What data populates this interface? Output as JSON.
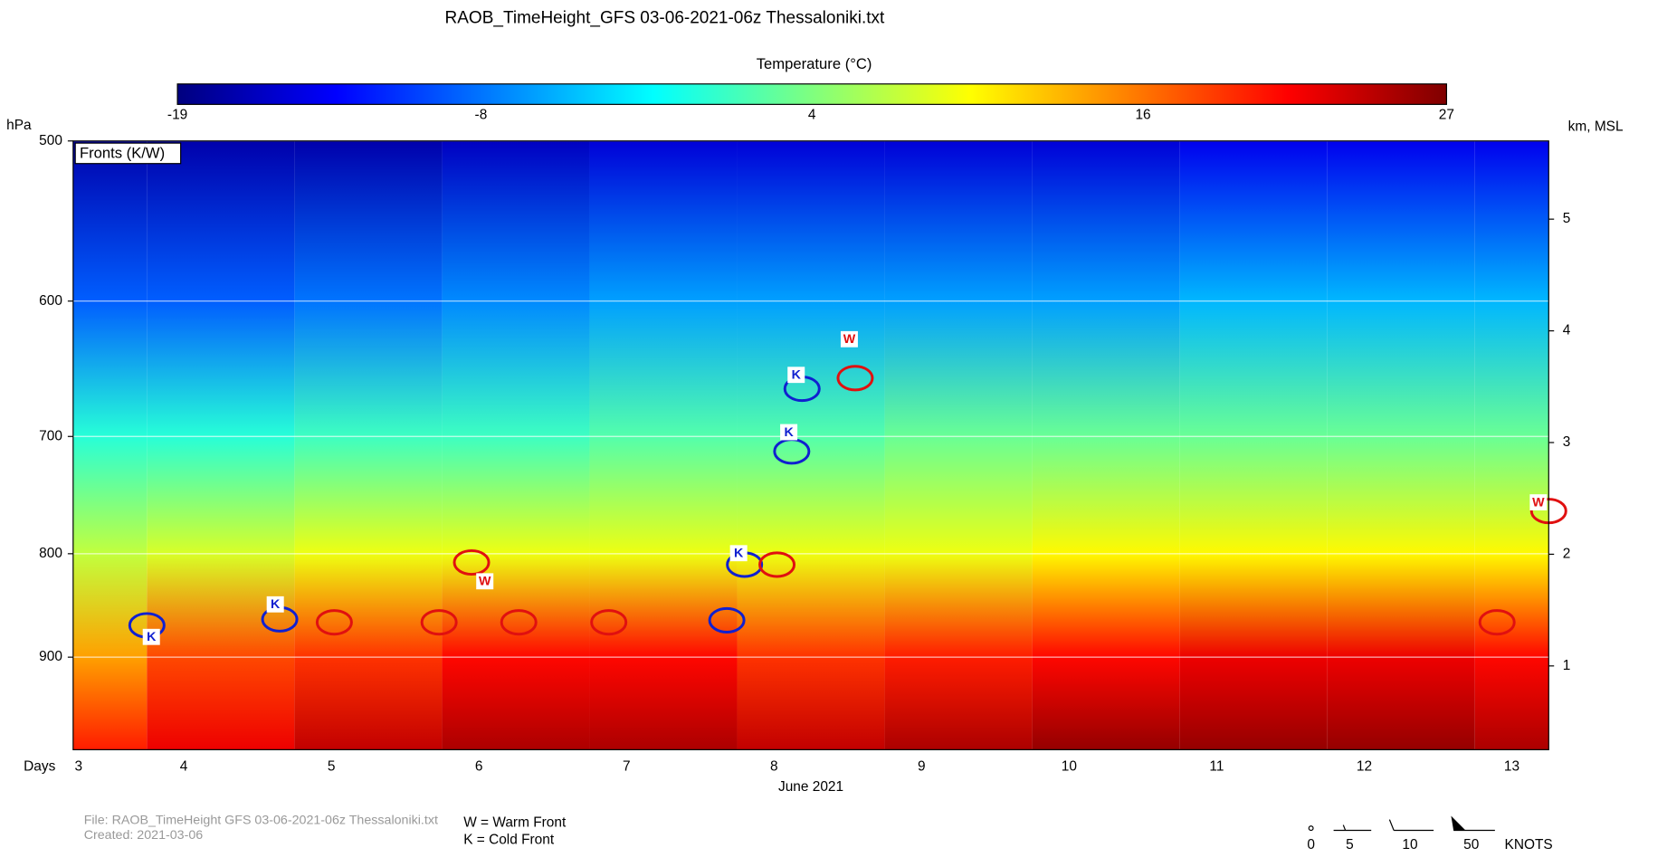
{
  "chart_data": {
    "type": "heatmap",
    "title": "RAOB_TimeHeight_GFS 03-06-2021-06z Thessaloniki.txt",
    "colorbar_label": "Temperature (°C)",
    "zlim": [
      -19,
      27
    ],
    "zticks": [
      -19,
      -8,
      4,
      16,
      27
    ],
    "colormap": [
      "#00007f",
      "#0000ff",
      "#007fff",
      "#00ffff",
      "#7fff7f",
      "#ffff00",
      "#ff7f00",
      "#ff0000",
      "#7f0000"
    ],
    "ylabel": "hPa",
    "y2label": "km, MSL",
    "xlabel": "Days",
    "x_sublabel": "June 2021",
    "log_y": true,
    "grid": true,
    "xlim": [
      3.25,
      13.25
    ],
    "xticks": [
      3,
      4,
      5,
      6,
      7,
      8,
      9,
      10,
      11,
      12,
      13
    ],
    "ylim": [
      500,
      1000
    ],
    "yticks": [
      500,
      600,
      700,
      800,
      900
    ],
    "y2lim": [
      0.25,
      5.7
    ],
    "y2ticks": [
      1,
      2,
      3,
      4,
      5
    ],
    "levels": [
      500,
      600,
      700,
      800,
      900,
      1000
    ],
    "x": [
      3.25,
      4.25,
      5.25,
      6.25,
      7.25,
      8.25,
      9.25,
      10.25,
      11.25,
      12.25,
      13.25
    ],
    "temperature": [
      [
        -17,
        -9,
        0,
        7,
        14,
        20
      ],
      [
        -17,
        -9,
        0,
        8,
        18,
        22
      ],
      [
        -17,
        -8,
        1,
        9,
        19,
        24
      ],
      [
        -16,
        -7,
        1,
        9,
        21,
        25
      ],
      [
        -15,
        -6,
        2,
        9,
        21,
        25
      ],
      [
        -15,
        -6,
        2,
        9,
        19,
        24
      ],
      [
        -15,
        -6,
        3,
        9,
        20,
        25
      ],
      [
        -15,
        -6,
        3,
        10,
        21,
        26
      ],
      [
        -14,
        -5,
        3,
        10,
        22,
        26
      ],
      [
        -14,
        -5,
        3,
        10,
        22,
        26
      ],
      [
        -14,
        -5,
        3,
        10,
        21,
        25
      ]
    ],
    "legend_title": "Fronts (K/W)",
    "contours": [
      {
        "x": 3.75,
        "p": 868,
        "color": "#1020d0"
      },
      {
        "x": 4.65,
        "p": 862,
        "color": "#1020d0"
      },
      {
        "x": 5.02,
        "p": 865,
        "color": "#e01010"
      },
      {
        "x": 5.73,
        "p": 865,
        "color": "#e01010"
      },
      {
        "x": 5.95,
        "p": 808,
        "color": "#e01010"
      },
      {
        "x": 6.27,
        "p": 865,
        "color": "#e01010"
      },
      {
        "x": 6.88,
        "p": 865,
        "color": "#e01010"
      },
      {
        "x": 7.68,
        "p": 863,
        "color": "#1020d0"
      },
      {
        "x": 7.8,
        "p": 810,
        "color": "#1020d0"
      },
      {
        "x": 8.02,
        "p": 810,
        "color": "#e01010"
      },
      {
        "x": 8.12,
        "p": 712,
        "color": "#1020d0"
      },
      {
        "x": 8.19,
        "p": 663,
        "color": "#1020d0"
      },
      {
        "x": 8.55,
        "p": 655,
        "color": "#e01010"
      },
      {
        "x": 12.9,
        "p": 865,
        "color": "#e01010"
      },
      {
        "x": 13.25,
        "p": 762,
        "color": "#e01010"
      }
    ],
    "front_labels": [
      {
        "label": "K",
        "x": 3.78,
        "p": 880,
        "color": "#1020d0"
      },
      {
        "label": "K",
        "x": 4.62,
        "p": 848,
        "color": "#1020d0"
      },
      {
        "label": "W",
        "x": 6.04,
        "p": 826,
        "color": "#e01010"
      },
      {
        "label": "K",
        "x": 7.76,
        "p": 800,
        "color": "#1020d0"
      },
      {
        "label": "K",
        "x": 8.1,
        "p": 697,
        "color": "#1020d0"
      },
      {
        "label": "K",
        "x": 8.15,
        "p": 653,
        "color": "#1020d0"
      },
      {
        "label": "W",
        "x": 8.51,
        "p": 627,
        "color": "#e01010"
      },
      {
        "label": "W",
        "x": 13.18,
        "p": 755,
        "color": "#e01010"
      }
    ],
    "footer": {
      "file": "File: RAOB_TimeHeight  GFS 03-06-2021-06z Thessaloniki.txt",
      "created": "Created:  2021-03-06",
      "warm": "W = Warm Front",
      "cold": "K = Cold Front"
    },
    "wind_key": {
      "labels": [
        "0",
        "5",
        "10",
        "50"
      ],
      "unit": "KNOTS"
    }
  }
}
